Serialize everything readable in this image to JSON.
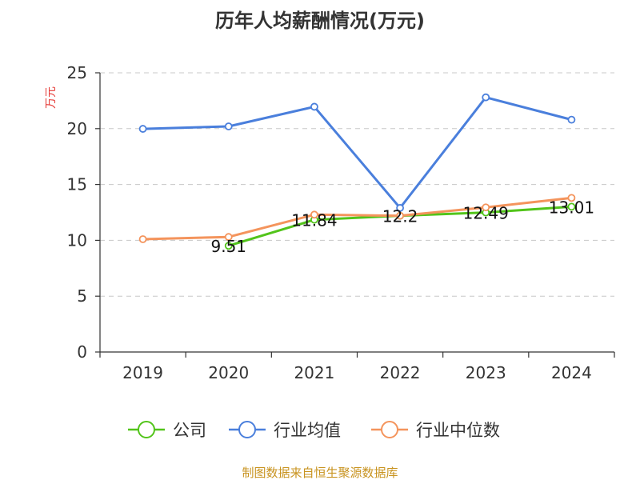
{
  "chart_data": {
    "type": "line",
    "title": "历年人均薪酬情况(万元)",
    "ylabel": "万元",
    "xlabel": "",
    "categories": [
      "2019",
      "2020",
      "2021",
      "2022",
      "2023",
      "2024"
    ],
    "ylim": [
      0,
      25
    ],
    "yticks": [
      0,
      5,
      10,
      15,
      20,
      25
    ],
    "grid": true,
    "legend_position": "bottom",
    "series": [
      {
        "name": "公司",
        "color": "#52c41a",
        "values": [
          null,
          9.51,
          11.84,
          12.2,
          12.49,
          13.01
        ],
        "labels": [
          "",
          "9.51",
          "11.84",
          "12.2",
          "12.49",
          "13.01"
        ]
      },
      {
        "name": "行业均值",
        "color": "#4a7fdc",
        "values": [
          19.98,
          20.2,
          21.96,
          12.9,
          22.8,
          20.8
        ]
      },
      {
        "name": "行业中位数",
        "color": "#f4945c",
        "values": [
          10.1,
          10.3,
          12.3,
          12.2,
          12.95,
          13.8
        ]
      }
    ]
  },
  "footer": {
    "source": "制图数据来自恒生聚源数据库"
  }
}
